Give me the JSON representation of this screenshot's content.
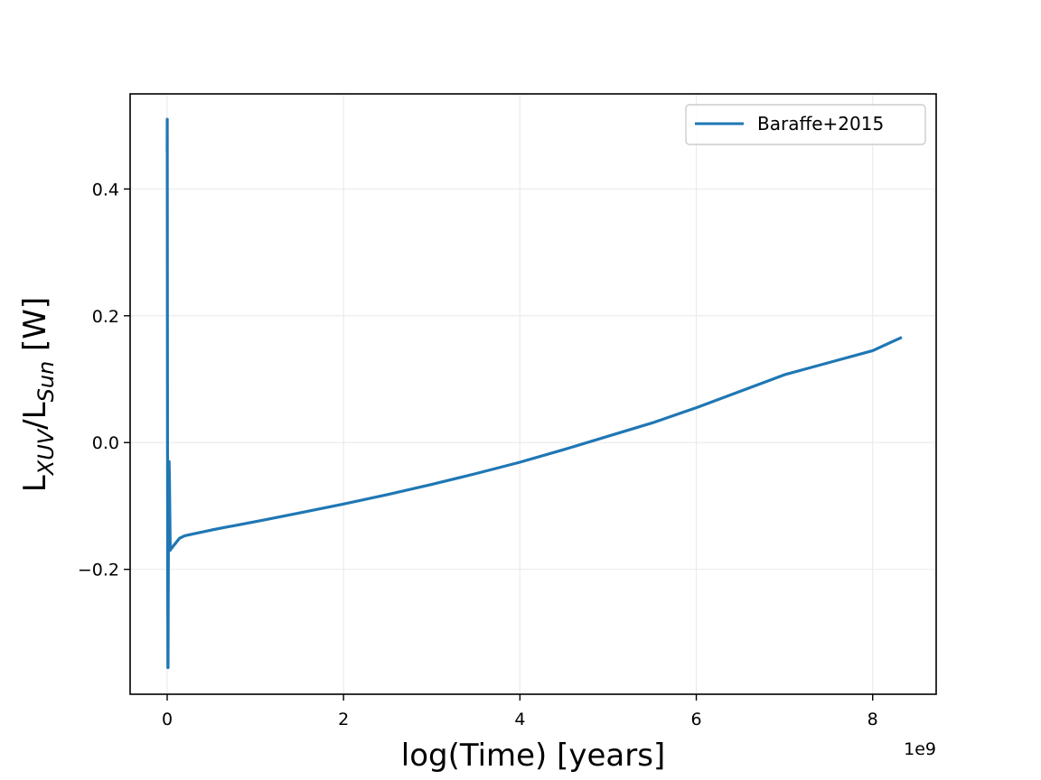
{
  "chart_data": {
    "type": "line",
    "title": "",
    "xlabel": "log(Time) [years]",
    "ylabel": {
      "base1": "L",
      "sub1": "XUV",
      "slash": "/L",
      "sub2": "Sun",
      "unit": " [W]"
    },
    "x_offset_label": "1e9",
    "xlim": [
      -0.42,
      8.72
    ],
    "ylim": [
      -0.397,
      0.55
    ],
    "x_ticks": [
      0,
      2,
      4,
      6,
      8
    ],
    "x_tick_labels": [
      "0",
      "2",
      "4",
      "6",
      "8"
    ],
    "y_ticks": [
      -0.2,
      0.0,
      0.2,
      0.4
    ],
    "y_tick_labels": [
      "−0.2",
      "0.0",
      "0.2",
      "0.4"
    ],
    "grid": true,
    "legend_position": "top-right",
    "series": [
      {
        "name": "Baraffe+2015",
        "color": "#1f77b4",
        "x": [
          0.0,
          0.001,
          0.002,
          0.004,
          0.006,
          0.008,
          0.01,
          0.012,
          0.015,
          0.018,
          0.022,
          0.026,
          0.03,
          0.035,
          0.04,
          0.05,
          0.07,
          0.1,
          0.14,
          0.2,
          0.3,
          0.5,
          0.8,
          1.1,
          1.5,
          2.0,
          2.5,
          3.0,
          3.5,
          4.0,
          4.5,
          5.0,
          5.5,
          6.0,
          6.5,
          7.0,
          7.5,
          8.0,
          8.33
        ],
        "y": [
          0.46,
          0.51,
          0.3,
          0.0,
          -0.2,
          -0.355,
          -0.355,
          -0.25,
          -0.12,
          -0.05,
          -0.03,
          -0.06,
          -0.11,
          -0.17,
          -0.168,
          -0.167,
          -0.163,
          -0.158,
          -0.151,
          -0.147,
          -0.144,
          -0.138,
          -0.13,
          -0.122,
          -0.111,
          -0.097,
          -0.082,
          -0.066,
          -0.049,
          -0.031,
          -0.011,
          0.01,
          0.031,
          0.055,
          0.081,
          0.107,
          0.126,
          0.145,
          0.166
        ]
      }
    ]
  }
}
